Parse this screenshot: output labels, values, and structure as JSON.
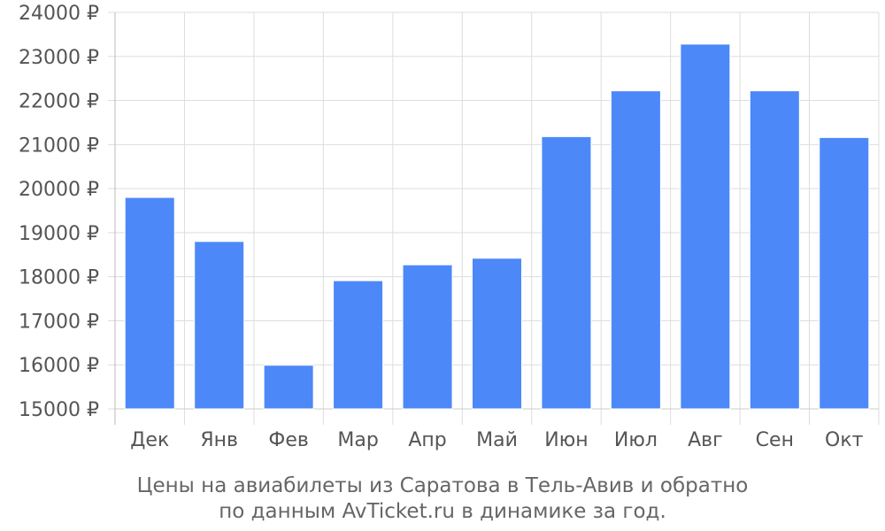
{
  "chart_data": {
    "type": "bar",
    "title": "",
    "xlabel": "",
    "ylabel": "",
    "categories": [
      "Дек",
      "Янв",
      "Фев",
      "Мар",
      "Апр",
      "Май",
      "Июн",
      "Июл",
      "Авг",
      "Сен",
      "Окт"
    ],
    "series": [
      {
        "values": [
          19800,
          18800,
          15990,
          17910,
          18270,
          18420,
          21180,
          22220,
          23280,
          22220,
          21160
        ]
      }
    ],
    "ylim": [
      15000,
      24000
    ],
    "yticks": [
      15000,
      16000,
      17000,
      18000,
      19000,
      20000,
      21000,
      22000,
      23000,
      24000
    ],
    "ytick_suffix": " ₽",
    "grid": true,
    "legend": "none",
    "bar_color": "#4d88f9"
  },
  "caption": {
    "line1": "Цены на авиабилеты из Саратова в Тель-Авив и обратно",
    "line2": "по данным AvTicket.ru в динамике за год."
  }
}
